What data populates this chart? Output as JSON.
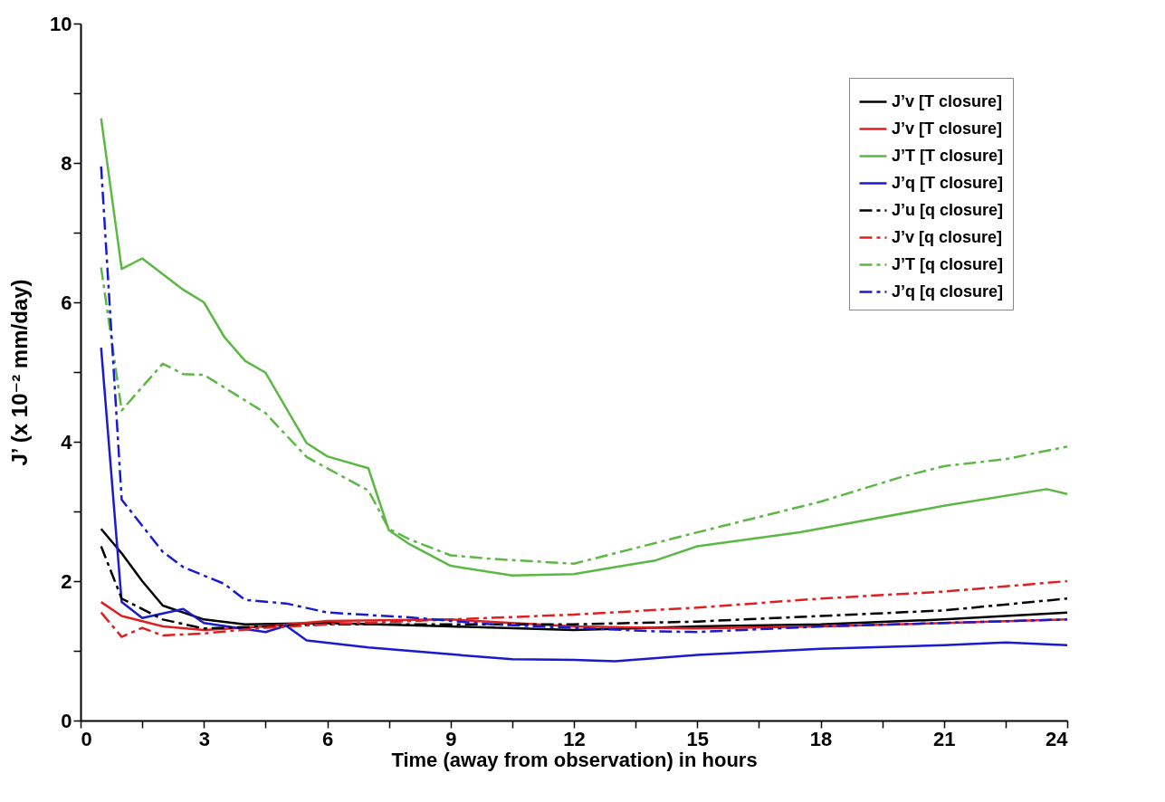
{
  "chart_data": {
    "type": "line",
    "xlabel": "Time (away from observation) in hours",
    "ylabel": "J’ (x 10⁻² mm/day)",
    "xlim": [
      0,
      24
    ],
    "ylim": [
      0,
      10
    ],
    "xticks": [
      0,
      {
        "value": 1.5,
        "label": null
      },
      3,
      {
        "value": 4.5,
        "label": null
      },
      6,
      {
        "value": 7.5,
        "label": null
      },
      9,
      {
        "value": 10.5,
        "label": null
      },
      12,
      {
        "value": 13.5,
        "label": null
      },
      15,
      {
        "value": 16.5,
        "label": null
      },
      18,
      {
        "value": 19.5,
        "label": null
      },
      21,
      {
        "value": 22.5,
        "label": null
      },
      24
    ],
    "yticks": [
      0,
      {
        "value": 1,
        "label": null
      },
      2,
      {
        "value": 3,
        "label": null
      },
      4,
      {
        "value": 5,
        "label": null
      },
      6,
      {
        "value": 7,
        "label": null
      },
      8,
      {
        "value": 9,
        "label": null
      },
      10
    ],
    "grid": false,
    "legend": "top right",
    "series": [
      {
        "name": "J’v [T closure]",
        "color": "#000000",
        "line_style": "solid",
        "x": [
          0.5,
          1,
          1.5,
          2,
          3,
          4,
          6,
          9,
          12,
          15,
          18,
          21,
          24
        ],
        "values": [
          2.75,
          2.4,
          2.0,
          1.65,
          1.45,
          1.38,
          1.4,
          1.35,
          1.3,
          1.35,
          1.38,
          1.45,
          1.55
        ]
      },
      {
        "name": "J’v [T closure]",
        "color": "#e02020",
        "line_style": "solid",
        "x": [
          0.5,
          1,
          2,
          3,
          4.5,
          6,
          9,
          12,
          15,
          18,
          21,
          24
        ],
        "values": [
          1.7,
          1.5,
          1.35,
          1.3,
          1.35,
          1.43,
          1.45,
          1.35,
          1.32,
          1.35,
          1.4,
          1.45
        ]
      },
      {
        "name": "J’T [T closure]",
        "color": "#5cb844",
        "line_style": "solid",
        "x": [
          0.5,
          1,
          1.5,
          2.5,
          3,
          3.5,
          4,
          4.5,
          5.5,
          6,
          7,
          7.5,
          8,
          9,
          10.5,
          12,
          13,
          14,
          15,
          17.5,
          21,
          23.5,
          24
        ],
        "values": [
          8.64,
          6.48,
          6.63,
          6.18,
          6.0,
          5.5,
          5.16,
          4.99,
          3.98,
          3.79,
          3.62,
          2.73,
          2.53,
          2.22,
          2.08,
          2.1,
          2.2,
          2.3,
          2.5,
          2.7,
          3.08,
          3.32,
          3.25
        ]
      },
      {
        "name": "J’q [T closure]",
        "color": "#1a1ad0",
        "line_style": "solid",
        "x": [
          0.5,
          1,
          1.5,
          2.5,
          3,
          4.5,
          5,
          5.5,
          7,
          8,
          9,
          10.5,
          12,
          13,
          15,
          18,
          21,
          22.5,
          24
        ],
        "values": [
          5.35,
          1.7,
          1.47,
          1.6,
          1.4,
          1.27,
          1.36,
          1.15,
          1.05,
          1.0,
          0.95,
          0.88,
          0.87,
          0.85,
          0.94,
          1.03,
          1.08,
          1.12,
          1.08
        ]
      },
      {
        "name": "J’u [q closure]",
        "color": "#000000",
        "line_style": "dashed",
        "x": [
          0.5,
          1,
          2,
          3,
          6,
          9,
          12,
          15,
          18,
          21,
          24
        ],
        "values": [
          2.5,
          1.75,
          1.45,
          1.32,
          1.38,
          1.38,
          1.38,
          1.42,
          1.5,
          1.58,
          1.75
        ]
      },
      {
        "name": "J’v [q closure]",
        "color": "#e02020",
        "line_style": "dashed",
        "x": [
          0.5,
          1,
          1.5,
          2,
          3,
          4.5,
          6,
          9,
          12,
          15,
          18,
          21,
          24
        ],
        "values": [
          1.55,
          1.2,
          1.33,
          1.22,
          1.25,
          1.33,
          1.38,
          1.45,
          1.52,
          1.62,
          1.75,
          1.85,
          2.0
        ]
      },
      {
        "name": "J’T [q closure]",
        "color": "#5cb844",
        "line_style": "dashed",
        "x": [
          0.5,
          1,
          2,
          2.5,
          3,
          4.5,
          5.5,
          7,
          7.5,
          8,
          9,
          10,
          12,
          13,
          15,
          18,
          20,
          21,
          22.5,
          24
        ],
        "values": [
          6.5,
          4.45,
          5.12,
          4.97,
          4.96,
          4.41,
          3.78,
          3.3,
          2.75,
          2.6,
          2.37,
          2.32,
          2.25,
          2.4,
          2.7,
          3.14,
          3.5,
          3.65,
          3.75,
          3.93
        ]
      },
      {
        "name": "J’q [q closure]",
        "color": "#1a1ad0",
        "line_style": "dashed",
        "x": [
          0.5,
          1,
          2,
          2.5,
          3.5,
          4,
          5,
          6,
          8,
          10,
          12,
          14,
          15,
          18,
          21,
          24
        ],
        "values": [
          7.95,
          3.17,
          2.42,
          2.2,
          1.96,
          1.73,
          1.68,
          1.55,
          1.48,
          1.38,
          1.33,
          1.28,
          1.27,
          1.35,
          1.4,
          1.45
        ]
      }
    ]
  }
}
